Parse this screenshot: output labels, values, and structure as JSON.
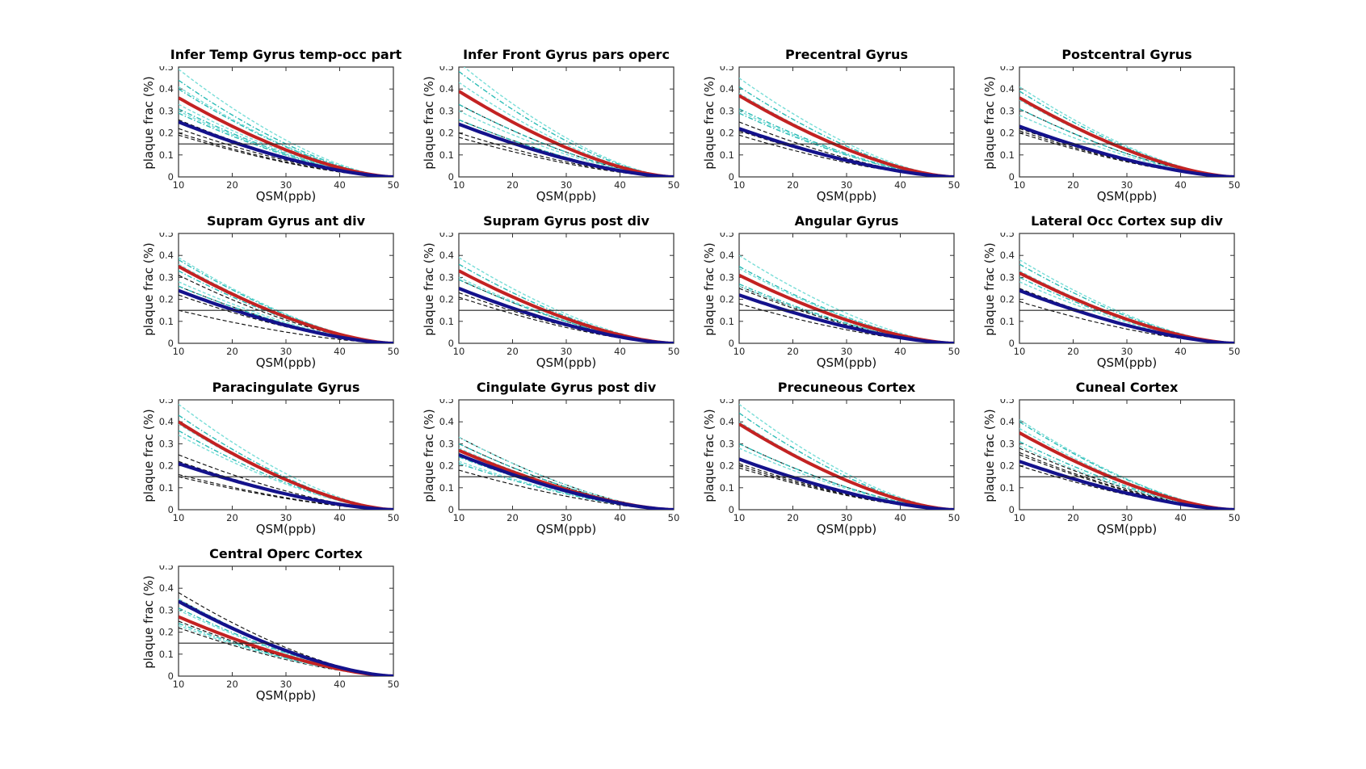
{
  "figure": {
    "type": "line",
    "xlabel": "QSM(ppb)",
    "ylabel": "plaque frac (%)",
    "xlim": [
      10,
      50
    ],
    "ylim": [
      0,
      0.5
    ],
    "xticks": [
      10,
      20,
      30,
      40,
      50
    ],
    "yticks": [
      0,
      0.1,
      0.2,
      0.3,
      0.4,
      0.5
    ],
    "threshold_y": 0.15,
    "grid": "off",
    "legend": "none",
    "colors": {
      "thick_red": "#c32222",
      "thick_blue": "#14128c",
      "cyan_light": "#79ded8",
      "cyan_dark": "#2bbcb6",
      "black_dashed": "#111111",
      "axis": "#333333",
      "tick_label": "#262626",
      "threshold": "#222222",
      "background": "#ffffff"
    },
    "curve_model": {
      "type": "power_decay",
      "formula": "y(x) = y_at_x10 * ((50 - x) / 40) ^ exponent",
      "exponent": 1.55,
      "x_start": 10,
      "x_end": 50,
      "y_at_x50": 0
    }
  },
  "chart_data": [
    {
      "type": "line",
      "title": "Infer Temp Gyrus temp-occ part",
      "thick_red_start": 0.36,
      "thick_blue_start": 0.25,
      "cyan_dashed_starts": [
        0.49,
        0.44,
        0.41,
        0.4,
        0.33,
        0.31,
        0.3,
        0.29
      ],
      "black_dashed_starts": [
        0.26,
        0.22,
        0.2,
        0.19
      ]
    },
    {
      "type": "line",
      "title": "Infer Front Gyrus pars operc",
      "thick_red_start": 0.39,
      "thick_blue_start": 0.24,
      "cyan_dashed_starts": [
        0.52,
        0.48,
        0.43,
        0.33,
        0.3,
        0.26
      ],
      "black_dashed_starts": [
        0.33,
        0.26,
        0.2,
        0.18
      ]
    },
    {
      "type": "line",
      "title": "Precentral Gyrus",
      "thick_red_start": 0.37,
      "thick_blue_start": 0.22,
      "cyan_dashed_starts": [
        0.45,
        0.41,
        0.38,
        0.31,
        0.3,
        0.29
      ],
      "black_dashed_starts": [
        0.25,
        0.22,
        0.21,
        0.19
      ]
    },
    {
      "type": "line",
      "title": "Postcentral Gyrus",
      "thick_red_start": 0.36,
      "thick_blue_start": 0.23,
      "cyan_dashed_starts": [
        0.41,
        0.39,
        0.35,
        0.31,
        0.28
      ],
      "black_dashed_starts": [
        0.31,
        0.22,
        0.21,
        0.2
      ]
    },
    {
      "type": "line",
      "title": "Supram Gyrus ant div",
      "thick_red_start": 0.35,
      "thick_blue_start": 0.24,
      "cyan_dashed_starts": [
        0.39,
        0.38,
        0.36,
        0.33,
        0.28,
        0.26
      ],
      "black_dashed_starts": [
        0.31,
        0.26,
        0.22,
        0.15
      ]
    },
    {
      "type": "line",
      "title": "Supram Gyrus post div",
      "thick_red_start": 0.33,
      "thick_blue_start": 0.25,
      "cyan_dashed_starts": [
        0.39,
        0.36,
        0.3,
        0.29
      ],
      "black_dashed_starts": [
        0.29,
        0.23,
        0.21
      ]
    },
    {
      "type": "line",
      "title": "Angular Gyrus",
      "thick_red_start": 0.31,
      "thick_blue_start": 0.22,
      "cyan_dashed_starts": [
        0.4,
        0.35,
        0.34,
        0.27,
        0.26
      ],
      "black_dashed_starts": [
        0.26,
        0.25,
        0.18
      ]
    },
    {
      "type": "line",
      "title": "Lateral Occ Cortex sup div",
      "thick_red_start": 0.32,
      "thick_blue_start": 0.24,
      "cyan_dashed_starts": [
        0.38,
        0.36,
        0.33,
        0.3,
        0.28
      ],
      "black_dashed_starts": [
        0.25,
        0.24,
        0.19
      ]
    },
    {
      "type": "line",
      "title": "Paracingulate Gyrus",
      "thick_red_start": 0.4,
      "thick_blue_start": 0.21,
      "cyan_dashed_starts": [
        0.48,
        0.43,
        0.39,
        0.36,
        0.34
      ],
      "black_dashed_starts": [
        0.25,
        0.22,
        0.16,
        0.15
      ]
    },
    {
      "type": "line",
      "title": "Cingulate Gyrus post div",
      "thick_red_start": 0.27,
      "thick_blue_start": 0.25,
      "cyan_dashed_starts": [
        0.33,
        0.3,
        0.28,
        0.24,
        0.22,
        0.21
      ],
      "black_dashed_starts": [
        0.33,
        0.3,
        0.18
      ]
    },
    {
      "type": "line",
      "title": "Precuneous Cortex",
      "thick_red_start": 0.39,
      "thick_blue_start": 0.23,
      "cyan_dashed_starts": [
        0.48,
        0.44,
        0.4,
        0.3,
        0.28
      ],
      "black_dashed_starts": [
        0.3,
        0.21,
        0.2,
        0.19
      ]
    },
    {
      "type": "line",
      "title": "Cuneal Cortex",
      "thick_red_start": 0.35,
      "thick_blue_start": 0.22,
      "cyan_dashed_starts": [
        0.41,
        0.4,
        0.37,
        0.31,
        0.29
      ],
      "black_dashed_starts": [
        0.28,
        0.26,
        0.25,
        0.22,
        0.2
      ]
    },
    {
      "type": "line",
      "title": "Central Operc Cortex",
      "thick_red_start": 0.27,
      "thick_blue_start": 0.34,
      "cyan_dashed_starts": [
        0.35,
        0.31,
        0.3,
        0.24,
        0.23
      ],
      "black_dashed_starts": [
        0.38,
        0.35,
        0.25,
        0.22
      ]
    }
  ]
}
